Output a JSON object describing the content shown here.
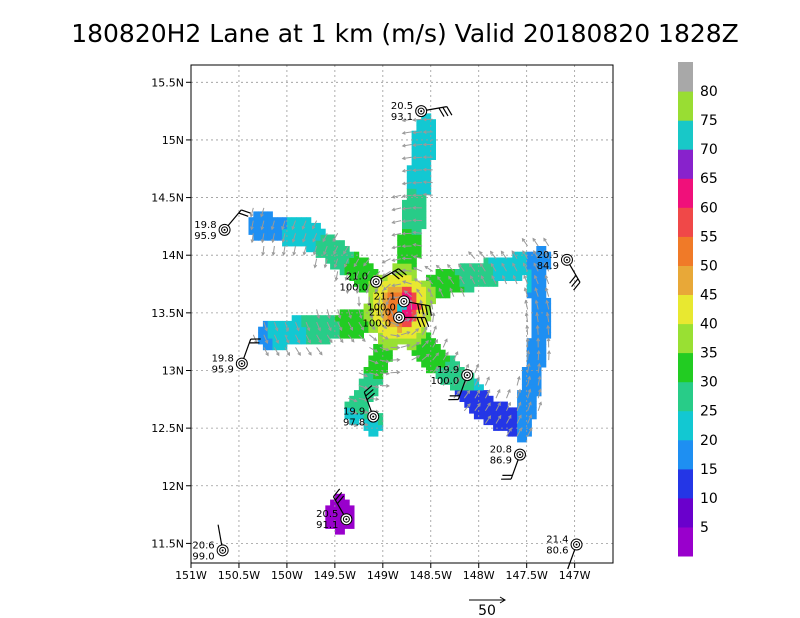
{
  "chart_data": {
    "type": "heatmap",
    "title": "180820H2 Lane at 1 km (m/s) Valid 20180820  1828Z",
    "xlim": [
      -151.0,
      -146.6
    ],
    "ylim": [
      11.33,
      15.65
    ],
    "x_ticks": [
      {
        "v": -151.0,
        "label": "151W"
      },
      {
        "v": -150.5,
        "label": "150.5W"
      },
      {
        "v": -150.0,
        "label": "150W"
      },
      {
        "v": -149.5,
        "label": "149.5W"
      },
      {
        "v": -149.0,
        "label": "149W"
      },
      {
        "v": -148.5,
        "label": "148.5W"
      },
      {
        "v": -148.0,
        "label": "148W"
      },
      {
        "v": -147.5,
        "label": "147.5W"
      },
      {
        "v": -147.0,
        "label": "147W"
      }
    ],
    "y_ticks": [
      {
        "v": 11.5,
        "label": "11.5N"
      },
      {
        "v": 12.0,
        "label": "12N"
      },
      {
        "v": 12.5,
        "label": "12.5N"
      },
      {
        "v": 13.0,
        "label": "13N"
      },
      {
        "v": 13.5,
        "label": "13.5N"
      },
      {
        "v": 14.0,
        "label": "14N"
      },
      {
        "v": 14.5,
        "label": "14.5N"
      },
      {
        "v": 15.0,
        "label": "15N"
      },
      {
        "v": 15.5,
        "label": "15.5N"
      }
    ],
    "grid": true,
    "center": {
      "lon": -148.82,
      "lat": 13.55
    },
    "colorbar": {
      "labels": [
        "5",
        "10",
        "15",
        "20",
        "25",
        "30",
        "35",
        "40",
        "45",
        "50",
        "55",
        "60",
        "65",
        "70",
        "75",
        "80"
      ],
      "colors": [
        "#9900cc",
        "#6a00cc",
        "#2436e6",
        "#1e8ff2",
        "#12c8d2",
        "#28cc88",
        "#22cc22",
        "#99e033",
        "#e8e830",
        "#e8a838",
        "#f07a28",
        "#f04848",
        "#f0107a",
        "#8822cc",
        "#18c8c8",
        "#99dd33",
        "#a8a8a8"
      ]
    },
    "wind_scale": {
      "value": 50,
      "label": "50"
    },
    "observations": [
      {
        "lon": -148.6,
        "lat": 15.25,
        "label1": "20.5",
        "label2": "93.1",
        "dir": 80,
        "barbs": 3
      },
      {
        "lon": -150.65,
        "lat": 14.22,
        "label1": "19.8",
        "label2": "95.9",
        "dir": 40,
        "barbs": 2
      },
      {
        "lon": -147.08,
        "lat": 13.96,
        "label1": "20.5",
        "label2": "84.9",
        "dir": 150,
        "barbs": 3
      },
      {
        "lon": -149.07,
        "lat": 13.77,
        "label1": "21.0",
        "label2": "100.0",
        "dir": 60,
        "barbs": 3
      },
      {
        "lon": -148.78,
        "lat": 13.6,
        "label1": "21.1",
        "label2": "100.0",
        "dir": 100,
        "barbs": 4
      },
      {
        "lon": -148.83,
        "lat": 13.46,
        "label1": "21.0",
        "label2": "100.0",
        "dir": 90,
        "barbs": 3
      },
      {
        "lon": -150.47,
        "lat": 13.06,
        "label1": "19.8",
        "label2": "95.9",
        "dir": 20,
        "barbs": 2
      },
      {
        "lon": -148.12,
        "lat": 12.96,
        "label1": "19.9",
        "label2": "100.0",
        "dir": 200,
        "barbs": 2
      },
      {
        "lon": -149.1,
        "lat": 12.6,
        "label1": "19.9",
        "label2": "97.8",
        "dir": 340,
        "barbs": 3
      },
      {
        "lon": -147.57,
        "lat": 12.27,
        "label1": "20.8",
        "label2": "86.9",
        "dir": 200,
        "barbs": 2
      },
      {
        "lon": -149.38,
        "lat": 11.71,
        "label1": "20.5",
        "label2": "91.1",
        "dir": 330,
        "barbs": 3
      },
      {
        "lon": -150.67,
        "lat": 11.44,
        "label1": "20.6",
        "label2": "99.0",
        "dir": 350,
        "barbs": 0
      },
      {
        "lon": -146.98,
        "lat": 11.49,
        "label1": "21.4",
        "label2": "80.6",
        "dir": 200,
        "barbs": 0
      }
    ]
  }
}
